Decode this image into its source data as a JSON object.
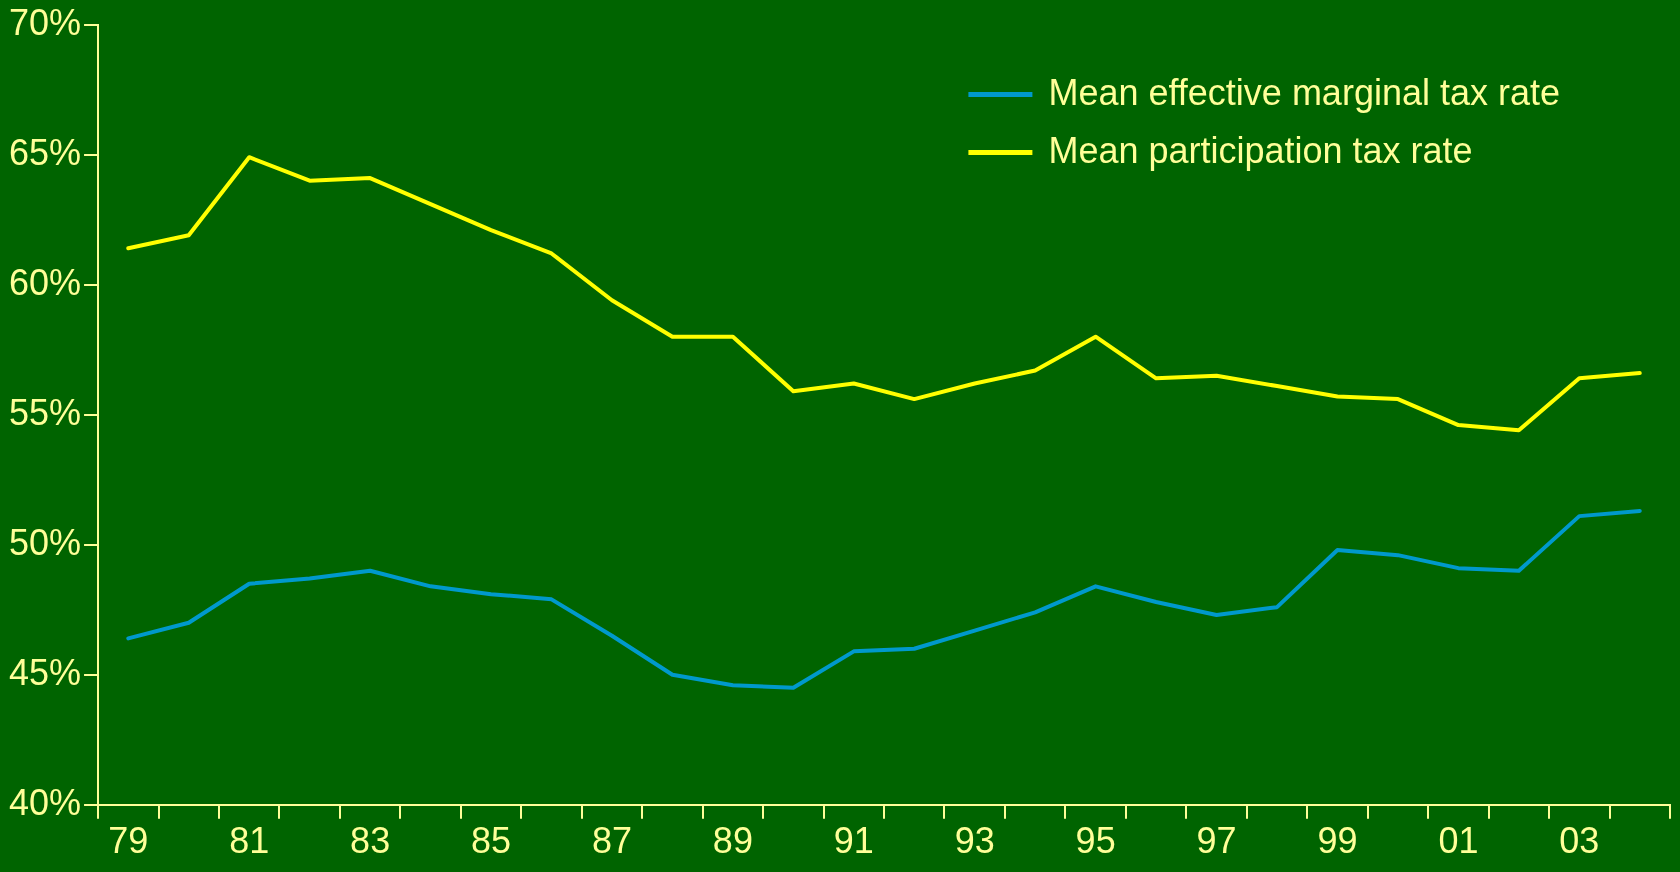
{
  "chart_data": {
    "type": "line",
    "categories": [
      "79",
      null,
      "81",
      null,
      "83",
      null,
      "85",
      null,
      "87",
      null,
      "89",
      null,
      "91",
      null,
      "93",
      null,
      "95",
      null,
      "97",
      null,
      "99",
      null,
      "01",
      null,
      "03",
      null
    ],
    "series": [
      {
        "name": "Mean effective marginal tax rate",
        "color": "#0099cc",
        "values": [
          46.4,
          47.0,
          48.5,
          48.7,
          49.0,
          48.4,
          48.1,
          47.9,
          46.5,
          45.0,
          44.6,
          44.5,
          45.9,
          46.0,
          46.7,
          47.4,
          48.4,
          47.8,
          47.3,
          47.6,
          49.8,
          49.6,
          49.1,
          49.0,
          51.1,
          51.3
        ]
      },
      {
        "name": "Mean participation tax rate",
        "color": "#ffff00",
        "values": [
          61.4,
          61.9,
          64.9,
          64.0,
          64.1,
          63.1,
          62.1,
          61.2,
          59.4,
          58.0,
          58.0,
          55.9,
          56.2,
          55.6,
          56.2,
          56.7,
          58.0,
          56.4,
          56.5,
          56.1,
          55.7,
          55.6,
          54.6,
          54.4,
          56.4,
          56.6
        ]
      }
    ],
    "ylim": [
      40,
      70
    ],
    "yticks": [
      {
        "value": 40,
        "label": "40%"
      },
      {
        "value": 45,
        "label": "45%"
      },
      {
        "value": 50,
        "label": "50%"
      },
      {
        "value": 55,
        "label": "55%"
      },
      {
        "value": 60,
        "label": "60%"
      },
      {
        "value": 65,
        "label": "65%"
      },
      {
        "value": 70,
        "label": "70%"
      }
    ],
    "grid": false,
    "legend": "top right",
    "marker": "none",
    "line_style": "solid"
  }
}
